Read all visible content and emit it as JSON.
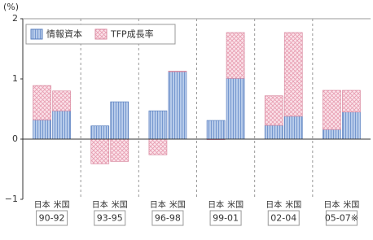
{
  "chart_data": {
    "type": "grouped-stacked-bar",
    "ylabel": "(%)",
    "groups": [
      "90-92",
      "93-95",
      "96-98",
      "99-01",
      "02-04",
      "05-07※"
    ],
    "categories": [
      "日本",
      "米国",
      "日本",
      "米国",
      "日本",
      "米国",
      "日本",
      "米国",
      "日本",
      "米国",
      "日本",
      "米国"
    ],
    "series": [
      {
        "name": "情報資本",
        "color": "#9fb9e0",
        "values": [
          0.32,
          0.47,
          0.22,
          0.62,
          0.47,
          1.12,
          0.31,
          1.01,
          0.23,
          0.38,
          0.16,
          0.45
        ]
      },
      {
        "name": "TFP成長率",
        "color": "#f9d0db",
        "values": [
          0.57,
          0.33,
          -0.41,
          -0.37,
          -0.26,
          0.01,
          -0.01,
          0.76,
          0.49,
          1.39,
          0.65,
          0.36
        ]
      }
    ],
    "ylim": [
      -1,
      2
    ],
    "yticks": [
      {
        "value": -1,
        "label": "−1"
      },
      0,
      1,
      2
    ],
    "legend": "top-left"
  }
}
